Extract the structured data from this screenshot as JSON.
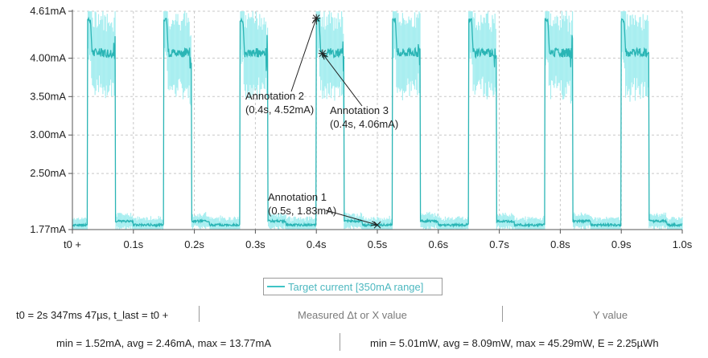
{
  "chart_data": {
    "type": "line",
    "series": [
      {
        "name": "Target current [350mA range]",
        "color": "#2ab5b5",
        "noise_color": "#a8eef0"
      }
    ],
    "xlim": [
      0.0,
      1.0
    ],
    "ylim": [
      1.77,
      4.61
    ],
    "y_ticks": [
      {
        "v": 4.61,
        "label": "4.61mA"
      },
      {
        "v": 4.0,
        "label": "4.00mA"
      },
      {
        "v": 3.5,
        "label": "3.50mA"
      },
      {
        "v": 3.0,
        "label": "3.00mA"
      },
      {
        "v": 2.5,
        "label": "2.50mA"
      },
      {
        "v": 1.77,
        "label": "1.77mA"
      }
    ],
    "x_ticks": [
      {
        "v": 0.0,
        "label": "t0 +"
      },
      {
        "v": 0.1,
        "label": "0.1s"
      },
      {
        "v": 0.2,
        "label": "0.2s"
      },
      {
        "v": 0.3,
        "label": "0.3s"
      },
      {
        "v": 0.4,
        "label": "0.4s"
      },
      {
        "v": 0.5,
        "label": "0.5s"
      },
      {
        "v": 0.6,
        "label": "0.6s"
      },
      {
        "v": 0.7,
        "label": "0.7s"
      },
      {
        "v": 0.8,
        "label": "0.8s"
      },
      {
        "v": 0.9,
        "label": "0.9s"
      },
      {
        "v": 1.0,
        "label": "1.0s"
      }
    ],
    "grid": true,
    "period_s": 0.125,
    "pulses": [
      {
        "start": 0.025,
        "end": 0.07
      },
      {
        "start": 0.15,
        "end": 0.195
      },
      {
        "start": 0.275,
        "end": 0.32
      },
      {
        "start": 0.4,
        "end": 0.445
      },
      {
        "start": 0.525,
        "end": 0.57
      },
      {
        "start": 0.65,
        "end": 0.695
      },
      {
        "start": 0.775,
        "end": 0.82
      },
      {
        "start": 0.9,
        "end": 0.945
      }
    ],
    "levels": {
      "baseline": 1.83,
      "idle_bump": 1.88,
      "plateau": 4.07,
      "peak": 4.52
    },
    "annotations": [
      {
        "name": "Annotation 2",
        "coords": "(0.4s, 4.52mA)",
        "x": 0.4,
        "y": 4.52,
        "marker": "star"
      },
      {
        "name": "Annotation 3",
        "coords": "(0.4s, 4.06mA)",
        "x": 0.41,
        "y": 4.06,
        "marker": "star"
      },
      {
        "name": "Annotation 1",
        "coords": "(0.5s, 1.83mA)",
        "x": 0.5,
        "y": 1.83,
        "marker": "x"
      }
    ]
  },
  "legend": {
    "label": "Target current [350mA range]"
  },
  "info": {
    "time_range": "t0 = 2s 347ms 47µs, t_last = t0 +",
    "measured_label": "Measured Δt or X value",
    "y_value_label": "Y value",
    "current_stats": "min = 1.52mA, avg = 2.46mA, max = 13.77mA",
    "power_stats": "min = 5.01mW, avg = 8.09mW, max = 45.29mW, E = 2.25µWh"
  }
}
